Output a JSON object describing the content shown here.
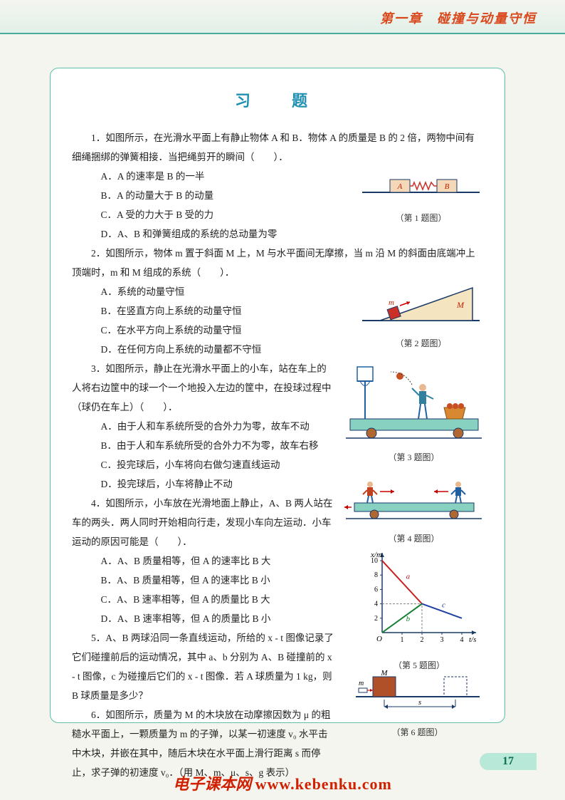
{
  "header": {
    "chapter": "第一章　碰撞与动量守恒"
  },
  "box": {
    "title": "习　题"
  },
  "questions": {
    "q1": {
      "stem": "1．如图所示，在光滑水平面上有静止物体 A 和 B．物体 A 的质量是 B 的 2 倍，两物中间有细绳捆绑的弹簧相接．当把绳剪开的瞬间（　　）．",
      "a": "A．A 的速率是 B 的一半",
      "b": "B．A 的动量大于 B 的动量",
      "c": "C．A 受的力大于 B 受的力",
      "d": "D．A、B 和弹簧组成的系统的总动量为零",
      "fig_caption": "（第 1 题图）",
      "fig": {
        "labelA": "A",
        "labelB": "B",
        "spring_color": "#c83028",
        "block_color": "#f4d8b8",
        "line_color": "#1a3a6a"
      }
    },
    "q2": {
      "stem": "2．如图所示，物体 m 置于斜面 M 上，M 与水平面间无摩擦，当 m 沿 M 的斜面由底端冲上顶端时，m 和 M 组成的系统（　　）．",
      "a": "A．系统的动量守恒",
      "b": "B．在竖直方向上系统的动量守恒",
      "c": "C．在水平方向上系统的动量守恒",
      "d": "D．在任何方向上系统的动量都不守恒",
      "fig_caption": "（第 2 题图）",
      "fig": {
        "labelm": "m",
        "labelM": "M",
        "wedge_color": "#f4e4c0",
        "block_color": "#c83028",
        "arrow_color": "#c80000",
        "line_color": "#1a3a6a"
      }
    },
    "q3": {
      "stem": "3．如图所示，静止在光滑水平面上的小车，站在车上的人将右边筐中的球一个一个地投入左边的筐中，在投球过程中（球仍在车上）（　　）．",
      "a": "A．由于人和车系统所受的合外力为零，故车不动",
      "b": "B．由于人和车系统所受的合外力不为零，故车右移",
      "c": "C．投完球后，小车将向右做匀速直线运动",
      "d": "D．投完球后，小车将静止不动",
      "fig_caption": "（第 3 题图）",
      "fig": {
        "cart_color": "#88d0c0",
        "wheel_color": "#b06830",
        "basket_color": "#d88830",
        "hoop_color": "#2060a0",
        "person_color": "#3080a0",
        "ball_color": "#c85020"
      }
    },
    "q4": {
      "stem": "4．如图所示，小车放在光滑地面上静止，A、B 两人站在车的两头．两人同时开始相向行走，发现小车向左运动．小车运动的原因可能是（　　）．",
      "a": "A．A、B 质量相等，但 A 的速率比 B 大",
      "b": "B．A、B 质量相等，但 A 的速率比 B 小",
      "c": "C．A、B 速率相等，但 A 的质量比 B 大",
      "d": "D．A、B 速率相等，但 A 的质量比 B 小",
      "fig_caption": "（第 4 题图）",
      "fig": {
        "cart_color": "#88d0c0",
        "wheel_color": "#b06830",
        "personA_color": "#c04020",
        "personB_color": "#2060a0",
        "arrow_color": "#c80000"
      }
    },
    "q5": {
      "stem1": "5．A、B 两球沿同一条直线运动，所给的 x - t 图像记录了它们碰撞前后的运动情况，其中 a、b 分别为 A、B 碰撞前的 x - t 图像，c 为碰撞后它们的 x - t 图像．若 A 球质量为 1 kg，则 B 球质量是多少？",
      "fig_caption": "（第 5 题图）",
      "fig": {
        "x_label": "t/s",
        "y_label": "x/m",
        "x_ticks": [
          "1",
          "2",
          "3",
          "4"
        ],
        "y_ticks": [
          "2",
          "4",
          "6",
          "8",
          "10"
        ],
        "line_a": {
          "color": "#c82020",
          "label": "a",
          "points": [
            [
              0,
              10
            ],
            [
              2,
              4
            ]
          ]
        },
        "line_b": {
          "color": "#108030",
          "label": "b",
          "points": [
            [
              0,
              0
            ],
            [
              2,
              4
            ]
          ]
        },
        "line_c": {
          "color": "#2040a0",
          "label": "c",
          "points": [
            [
              2,
              4
            ],
            [
              4,
              2
            ]
          ]
        },
        "dash_color": "#808080",
        "axis_color": "#1a3a6a",
        "bg": "#ffffff"
      }
    },
    "q6": {
      "stem": "6．如图所示，质量为 M 的木块放在动摩擦因数为 μ 的粗糙水平面上，一颗质量为 m 的子弹，以某一初速度 v₀ 水平击中木块，并嵌在其中，随后木块在水平面上滑行距离 s 而停止，求子弹的初速度 v₀．（用 M、m、μ、s、g 表示）",
      "fig_caption": "（第 6 题图）",
      "fig": {
        "labelM": "M",
        "labelm": "m",
        "label_s": "s",
        "block_color": "#b05028",
        "line_color": "#1a3a6a",
        "dash_block_color": "#1a3a6a"
      }
    }
  },
  "page_number": "17",
  "watermark": {
    "text": "电子课本网",
    "url": "www.kebenku.com"
  }
}
